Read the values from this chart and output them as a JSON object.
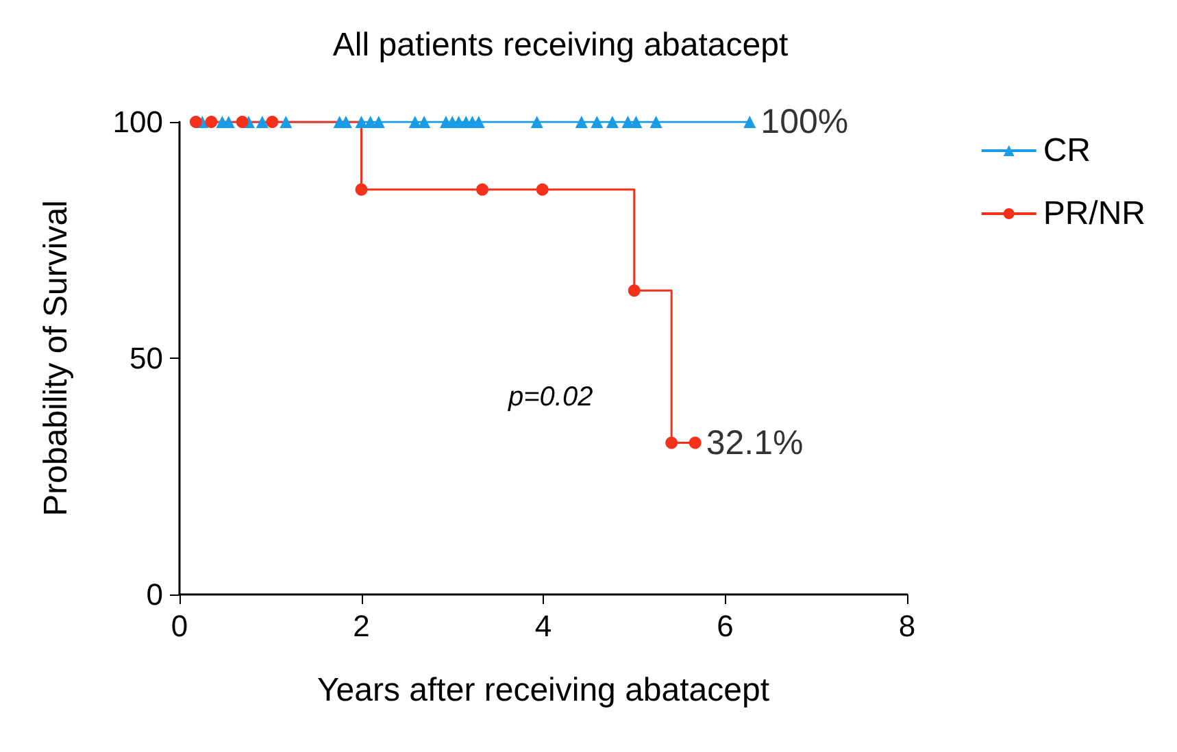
{
  "chart_data": {
    "type": "step",
    "title": "All patients receiving abatacept",
    "xlabel": "Years after receiving abatacept",
    "ylabel": "Probability of Survival",
    "xlim": [
      0,
      8
    ],
    "xticks": [
      0,
      2,
      4,
      6,
      8
    ],
    "ylim": [
      0,
      100
    ],
    "yticks": [
      0,
      50,
      100
    ],
    "grid": false,
    "legend": "right",
    "series": [
      {
        "name": "CR",
        "color": "#1a9be6",
        "marker": "triangle",
        "x": [
          0.25,
          0.47,
          0.54,
          0.76,
          0.91,
          1.17,
          1.76,
          1.83,
          2.0,
          2.1,
          2.19,
          2.59,
          2.69,
          2.93,
          3.0,
          3.07,
          3.15,
          3.22,
          3.29,
          3.93,
          4.42,
          4.59,
          4.76,
          4.93,
          5.02,
          5.24,
          6.27
        ],
        "values": [
          100,
          100,
          100,
          100,
          100,
          100,
          100,
          100,
          100,
          100,
          100,
          100,
          100,
          100,
          100,
          100,
          100,
          100,
          100,
          100,
          100,
          100,
          100,
          100,
          100,
          100,
          100
        ]
      },
      {
        "name": "PR/NR",
        "color": "#f5311b",
        "marker": "circle",
        "x": [
          0.18,
          0.35,
          0.69,
          1.02,
          2.0,
          3.33,
          3.99,
          5.0,
          5.41,
          5.67
        ],
        "values": [
          100,
          100,
          100,
          100,
          85.7,
          85.7,
          85.7,
          64.3,
          32.1,
          32.1
        ]
      }
    ],
    "annotations": [
      {
        "text": "100%",
        "x": 6.27,
        "y": 100
      },
      {
        "text": "32.1%",
        "x": 5.67,
        "y": 32.1
      },
      "p=0.02"
    ]
  }
}
